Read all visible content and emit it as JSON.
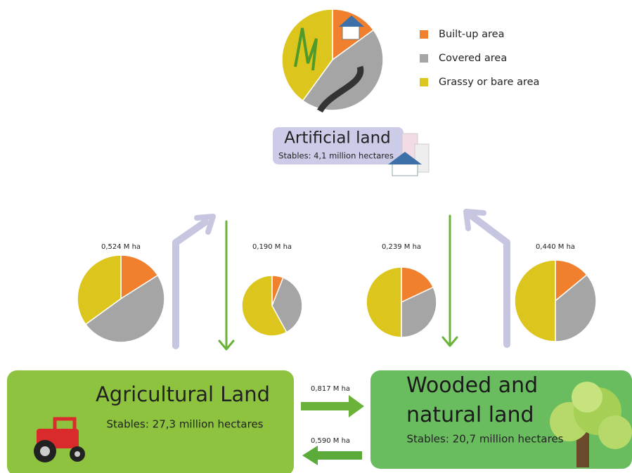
{
  "legend": [
    {
      "label": "Built-up area",
      "color": "#f07f2e"
    },
    {
      "label": "Covered area",
      "color": "#a5a5a5"
    },
    {
      "label": "Grassy or bare area",
      "color": "#dcc61e"
    }
  ],
  "artificial": {
    "title": "Artificial land",
    "subtitle": "Stables: 4,1 million hectares",
    "pie": [
      15,
      45,
      40
    ]
  },
  "agricultural": {
    "title": "Agricultural Land",
    "subtitle": "Stables: 27,3 million hectares"
  },
  "wooded": {
    "title": "Wooded and natural land",
    "subtitle": "Stables: 20,7 million hectares"
  },
  "flows": [
    {
      "label": "0,524 M ha",
      "pie": [
        16,
        49,
        35
      ]
    },
    {
      "label": "0,190 M ha",
      "pie": [
        6,
        36,
        58
      ]
    },
    {
      "label": "0,239 M ha",
      "pie": [
        18,
        32,
        50
      ]
    },
    {
      "label": "0,440 M ha",
      "pie": [
        14,
        36,
        50
      ]
    }
  ],
  "transfers": [
    {
      "label": "0,817 M ha"
    },
    {
      "label": "0,590 M ha"
    }
  ]
}
